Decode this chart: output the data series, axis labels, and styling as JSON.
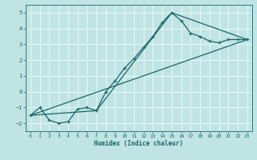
{
  "xlabel": "Humidex (Indice chaleur)",
  "ylabel": "",
  "xlim": [
    -0.5,
    23.5
  ],
  "ylim": [
    -2.5,
    5.5
  ],
  "bg_color": "#c0e4e4",
  "grid_color": "#e8f8f8",
  "line_color": "#1a6666",
  "line1_x": [
    0,
    1,
    2,
    3,
    4,
    5,
    6,
    7,
    8,
    9,
    10,
    11,
    12,
    13,
    14,
    15,
    16,
    17,
    18,
    19,
    20,
    21,
    22,
    23
  ],
  "line1_y": [
    -1.5,
    -1.0,
    -1.8,
    -2.0,
    -1.9,
    -1.1,
    -1.0,
    -1.2,
    0.0,
    0.7,
    1.5,
    2.1,
    2.8,
    3.5,
    4.4,
    5.0,
    4.5,
    3.7,
    3.5,
    3.2,
    3.1,
    3.3,
    3.3,
    3.3
  ],
  "line2_x": [
    0,
    23
  ],
  "line2_y": [
    -1.5,
    3.3
  ],
  "line3_x": [
    0,
    7,
    15,
    23
  ],
  "line3_y": [
    -1.5,
    -1.2,
    5.0,
    3.3
  ],
  "xticks": [
    0,
    1,
    2,
    3,
    4,
    5,
    6,
    7,
    8,
    9,
    10,
    11,
    12,
    13,
    14,
    15,
    16,
    17,
    18,
    19,
    20,
    21,
    22,
    23
  ],
  "yticks": [
    -2,
    -1,
    0,
    1,
    2,
    3,
    4,
    5
  ],
  "tick_fontsize": 4.5,
  "label_fontsize": 5.5
}
